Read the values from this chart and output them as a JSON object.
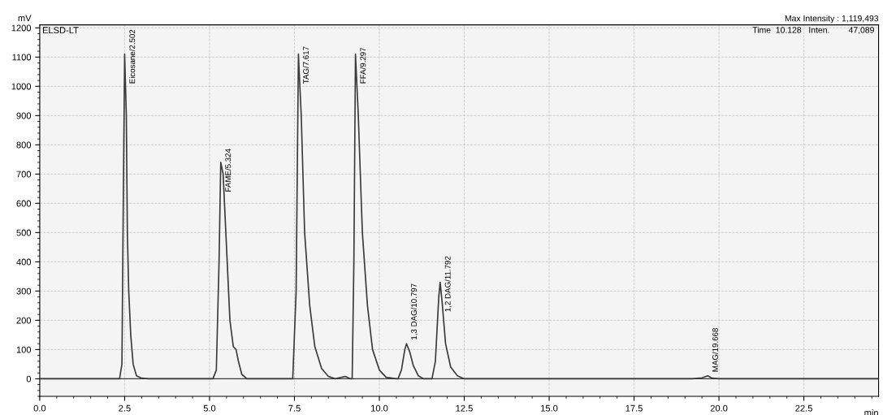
{
  "chart_data": {
    "type": "line",
    "title": "ELSD-LT",
    "xlabel": "min",
    "ylabel": "mV",
    "x": [
      0,
      2.35,
      2.42,
      2.46,
      2.5,
      2.55,
      2.58,
      2.62,
      2.68,
      2.75,
      2.85,
      3.0,
      3.2,
      5.1,
      5.2,
      5.28,
      5.33,
      5.4,
      5.5,
      5.6,
      5.7,
      5.78,
      5.85,
      5.95,
      6.1,
      7.45,
      7.55,
      7.617,
      7.7,
      7.8,
      7.95,
      8.1,
      8.3,
      8.5,
      8.7,
      9.0,
      9.15,
      9.2,
      9.25,
      9.297,
      9.38,
      9.5,
      9.65,
      9.8,
      10.0,
      10.2,
      10.5,
      10.55,
      10.65,
      10.75,
      10.8,
      10.9,
      11.0,
      11.15,
      11.3,
      11.55,
      11.65,
      11.75,
      11.79,
      11.85,
      11.95,
      12.1,
      12.3,
      12.5,
      19.2,
      19.5,
      19.67,
      19.8,
      20.0,
      24.7
    ],
    "series": [
      {
        "color": "#3a3a3a",
        "values": [
          0,
          0,
          50,
          600,
          1110,
          900,
          500,
          300,
          150,
          50,
          10,
          2,
          0,
          0,
          30,
          400,
          740,
          700,
          450,
          200,
          110,
          100,
          60,
          15,
          0,
          0,
          300,
          1110,
          900,
          500,
          250,
          110,
          35,
          8,
          0,
          8,
          0,
          0,
          400,
          1110,
          900,
          500,
          250,
          100,
          30,
          5,
          0,
          0,
          30,
          100,
          120,
          90,
          45,
          10,
          0,
          0,
          60,
          280,
          330,
          260,
          120,
          40,
          10,
          0,
          0,
          3,
          10,
          2,
          0,
          0
        ]
      }
    ],
    "xlim": [
      0,
      24.7
    ],
    "ylim": [
      -60,
      1210
    ],
    "xticks": [
      {
        "value": 0,
        "label": "0.0"
      },
      2.5,
      {
        "value": 5,
        "label": "5.0"
      },
      7.5,
      {
        "value": 10,
        "label": "10.0"
      },
      12.5,
      {
        "value": 15,
        "label": "15.0"
      },
      17.5,
      {
        "value": 20,
        "label": "20.0"
      },
      22.5
    ],
    "yticks": [
      0,
      100,
      200,
      300,
      400,
      500,
      600,
      700,
      800,
      900,
      1000,
      1100,
      1200
    ],
    "ref_lines": [
      {
        "axis": "y",
        "value": 0,
        "color": "#3a3a3a"
      }
    ],
    "grid": true,
    "line_style": "solid",
    "marker": "none",
    "annotations": [
      {
        "text": "Eicosane/2.502",
        "x": 2.502,
        "y": 1110
      },
      {
        "text": "FAME/5.324",
        "x": 5.324,
        "y": 740
      },
      {
        "text": "TAG/7.617",
        "x": 7.617,
        "y": 1110
      },
      {
        "text": "FFA/9.297",
        "x": 9.297,
        "y": 1110
      },
      {
        "text": "1,3 DAG/10.797",
        "x": 10.797,
        "y": 120
      },
      {
        "text": "1,2 DAG/11.792",
        "x": 11.792,
        "y": 330
      },
      {
        "text": "MAG/19.668",
        "x": 19.668,
        "y": 10
      },
      "Max Intensity : 1,119,493",
      "Time  10.128   Inten.        47,089"
    ]
  }
}
